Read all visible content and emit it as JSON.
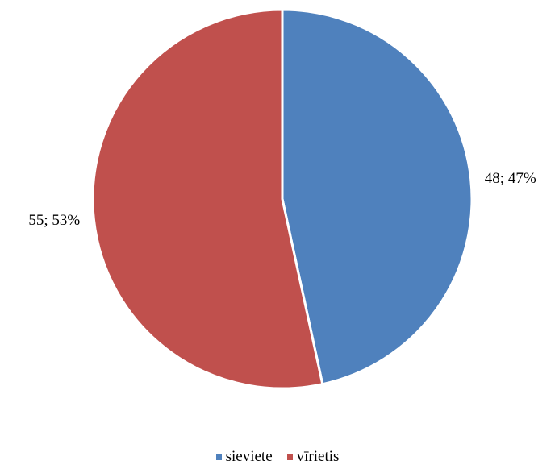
{
  "chart_data": {
    "type": "pie",
    "title": "",
    "categories": [
      "sieviete",
      "vīrietis"
    ],
    "values": [
      48,
      55
    ],
    "percentages": [
      47,
      53
    ],
    "data_labels": [
      "48; 47%",
      "55; 53%"
    ],
    "colors": [
      "#4f81bd",
      "#c0504d"
    ],
    "legend_position": "bottom"
  }
}
